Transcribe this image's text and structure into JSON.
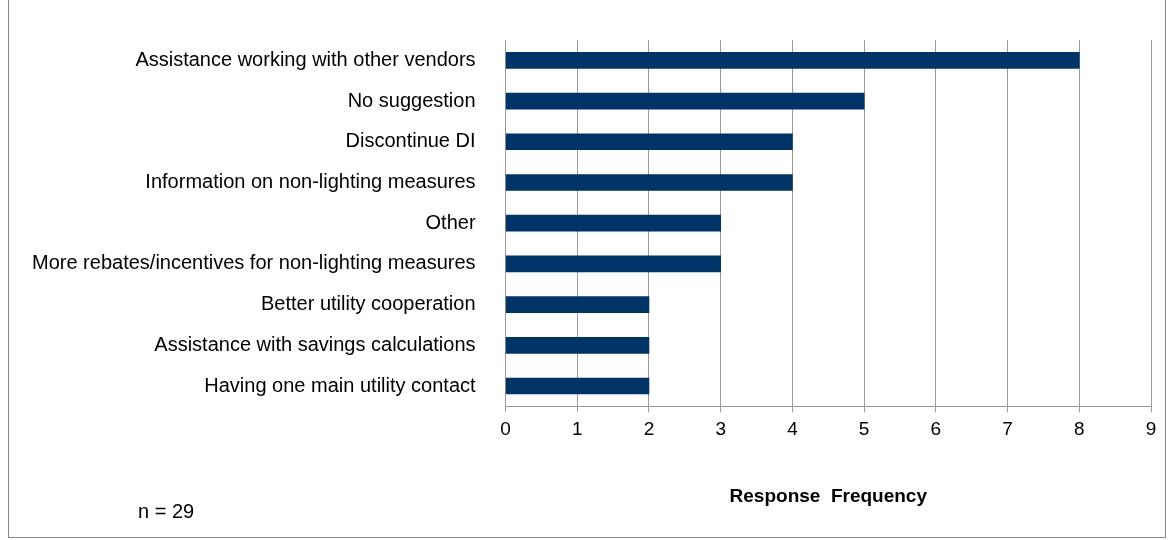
{
  "chart_data": {
    "type": "bar",
    "orientation": "horizontal",
    "xlabel": "Response  Frequency",
    "categories": [
      "Assistance working with other vendors",
      "No suggestion",
      "Discontinue DI",
      "Information on non-lighting measures",
      "Other",
      "More rebates/incentives for non-lighting measures",
      "Better utility cooperation",
      "Assistance with savings calculations",
      "Having one main utility contact"
    ],
    "values": [
      8,
      5,
      4,
      4,
      3,
      3,
      2,
      2,
      2
    ],
    "color": "#003366",
    "xlim": [
      0,
      9
    ],
    "xticks": [
      0,
      1,
      2,
      3,
      4,
      5,
      6,
      7,
      8,
      9
    ],
    "grid": "x",
    "annotations": [
      "n = 29"
    ]
  }
}
